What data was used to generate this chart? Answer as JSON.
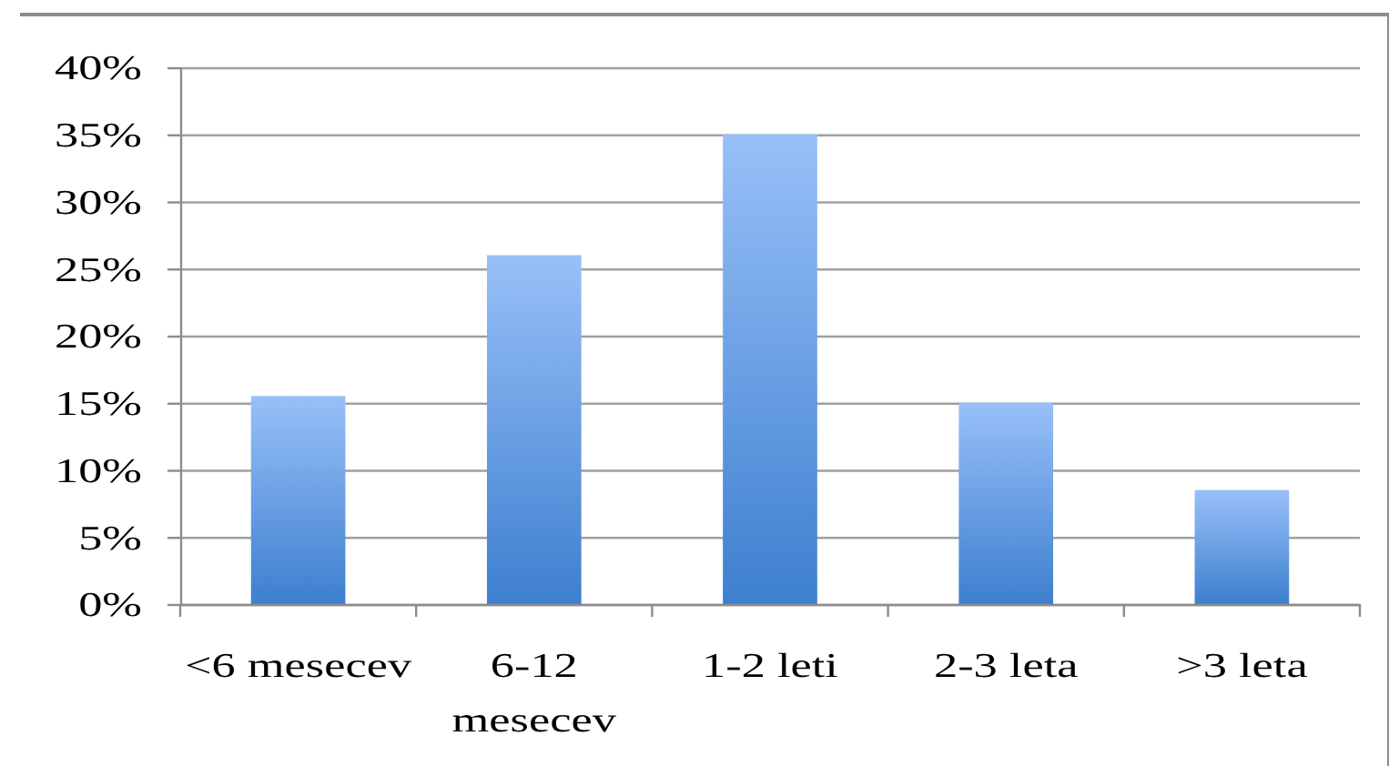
{
  "chart_data": {
    "type": "bar",
    "categories": [
      "<6 mesecev",
      "6-12 mesecev",
      "1-2 leti",
      "2-3 leta",
      ">3 leta"
    ],
    "values": [
      15.5,
      26,
      35,
      15,
      8.5
    ],
    "color": "#3d7fcf",
    "ylim": [
      0,
      40
    ],
    "yticks": [
      {
        "value": 0,
        "label": "0%"
      },
      {
        "value": 5,
        "label": "5%"
      },
      {
        "value": 10,
        "label": "10%"
      },
      {
        "value": 15,
        "label": "15%"
      },
      {
        "value": 20,
        "label": "20%"
      },
      {
        "value": 25,
        "label": "25%"
      },
      {
        "value": 30,
        "label": "30%"
      },
      {
        "value": 35,
        "label": "35%"
      },
      {
        "value": 40,
        "label": "40%"
      }
    ],
    "grid": "y"
  }
}
